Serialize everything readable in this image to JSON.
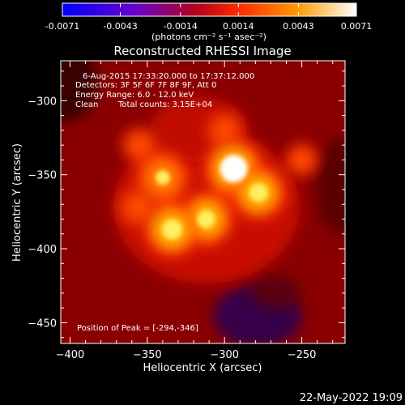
{
  "colorbar": {
    "tick_labels": [
      "-0.0071",
      "-0.0043",
      "-0.0014",
      "0.0014",
      "0.0043",
      "0.0071"
    ],
    "tick_values": [
      -0.0071,
      -0.0043,
      -0.0014,
      0.0014,
      0.0043,
      0.0071
    ],
    "range": [
      -0.0071,
      0.0071
    ],
    "units_label": "(photons cm⁻² s⁻¹ asec⁻²)",
    "colors": [
      "#0000ff",
      "#7a00c8",
      "#b0001c",
      "#ff5000",
      "#ffff40",
      "#ffffff"
    ]
  },
  "chart_data": {
    "type": "heatmap",
    "title": "Reconstructed RHESSI Image",
    "xlabel": "Heliocentric X (arcsec)",
    "ylabel": "Heliocentric Y (arcsec)",
    "xlim": [
      -406,
      -222
    ],
    "ylim": [
      -464,
      -273
    ],
    "x_ticks": [
      -400,
      -350,
      -300,
      -250
    ],
    "x_tick_labels": [
      "−400",
      "−350",
      "−300",
      "−250"
    ],
    "y_ticks": [
      -450,
      -400,
      -350,
      -300
    ],
    "y_tick_labels": [
      "−450",
      "−400",
      "−350",
      "−300"
    ],
    "sources": [
      {
        "x": -294,
        "y": -346,
        "value": 0.0071
      },
      {
        "x": -278,
        "y": -362,
        "value": 0.0058
      },
      {
        "x": -340,
        "y": -352,
        "value": 0.0052
      },
      {
        "x": -312,
        "y": -380,
        "value": 0.0057
      },
      {
        "x": -334,
        "y": -387,
        "value": 0.006
      },
      {
        "x": -356,
        "y": -372,
        "value": 0.0028
      },
      {
        "x": -300,
        "y": -320,
        "value": 0.0022
      },
      {
        "x": -355,
        "y": -330,
        "value": 0.0018
      },
      {
        "x": -250,
        "y": -340,
        "value": 0.0012
      }
    ],
    "annotations": {
      "line1": "6-Aug-2015 17:33:20.000 to 17:37:12.000",
      "line2": "Detectors: 3F 5F 6F 7F 8F 9F, Att 0",
      "line3": "Energy Range: 6.0 - 12.0 keV",
      "line4a": "Clean",
      "line4b": "Total counts: 3.15E+04",
      "peak": "Position of Peak = [-294,-346]"
    }
  },
  "footer": {
    "date": "22-May-2022 19:09"
  }
}
